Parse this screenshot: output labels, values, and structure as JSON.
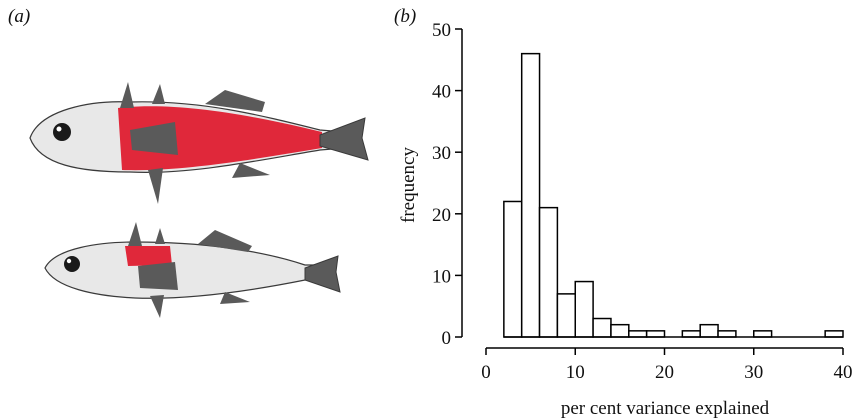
{
  "panel_labels": {
    "a": "(a)",
    "b": "(b)"
  },
  "fish": {
    "body_color": "#e8e8e8",
    "muscle_color": "#e0283a",
    "fin_color": "#5a5a5a",
    "outline_color": "#3a3a3a"
  },
  "chart_data": {
    "type": "bar",
    "title": "",
    "xlabel": "per cent variance explained",
    "ylabel": "frequency",
    "bin_edges": [
      2,
      4,
      6,
      8,
      10,
      12,
      14,
      16,
      18,
      20,
      22,
      24,
      26,
      28,
      30,
      32,
      34,
      36,
      38,
      40
    ],
    "values": [
      22,
      46,
      21,
      7,
      9,
      3,
      2,
      1,
      1,
      0,
      1,
      2,
      1,
      0,
      1,
      0,
      0,
      0,
      1
    ],
    "xlim": [
      0,
      40
    ],
    "ylim": [
      0,
      50
    ],
    "xticks": [
      0,
      10,
      20,
      30,
      40
    ],
    "yticks": [
      0,
      10,
      20,
      30,
      40,
      50
    ],
    "grid": false,
    "bar_fill": "#ffffff",
    "bar_stroke": "#000000"
  }
}
